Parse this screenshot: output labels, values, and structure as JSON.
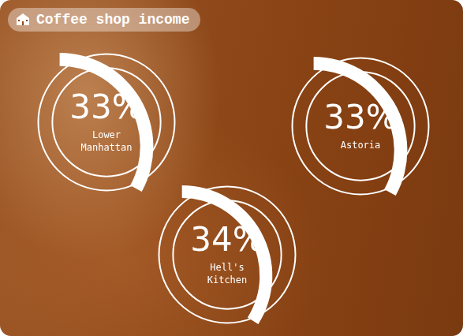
{
  "title": "Coffee shop income",
  "chart_data": [
    {
      "type": "doughnut",
      "categories": [
        "Lower Manhattan"
      ],
      "values": [
        33
      ],
      "value_labels": [
        "33%"
      ],
      "ylim": [
        0,
        100
      ],
      "color": "#ffffff",
      "data_labels": true
    },
    {
      "type": "doughnut",
      "categories": [
        "Astoria"
      ],
      "values": [
        33
      ],
      "value_labels": [
        "33%"
      ],
      "ylim": [
        0,
        100
      ],
      "color": "#ffffff",
      "data_labels": true
    },
    {
      "type": "doughnut",
      "categories": [
        "Hell's Kitchen"
      ],
      "values": [
        34
      ],
      "value_labels": [
        "34%"
      ],
      "ylim": [
        0,
        100
      ],
      "color": "#ffffff",
      "data_labels": true
    }
  ]
}
